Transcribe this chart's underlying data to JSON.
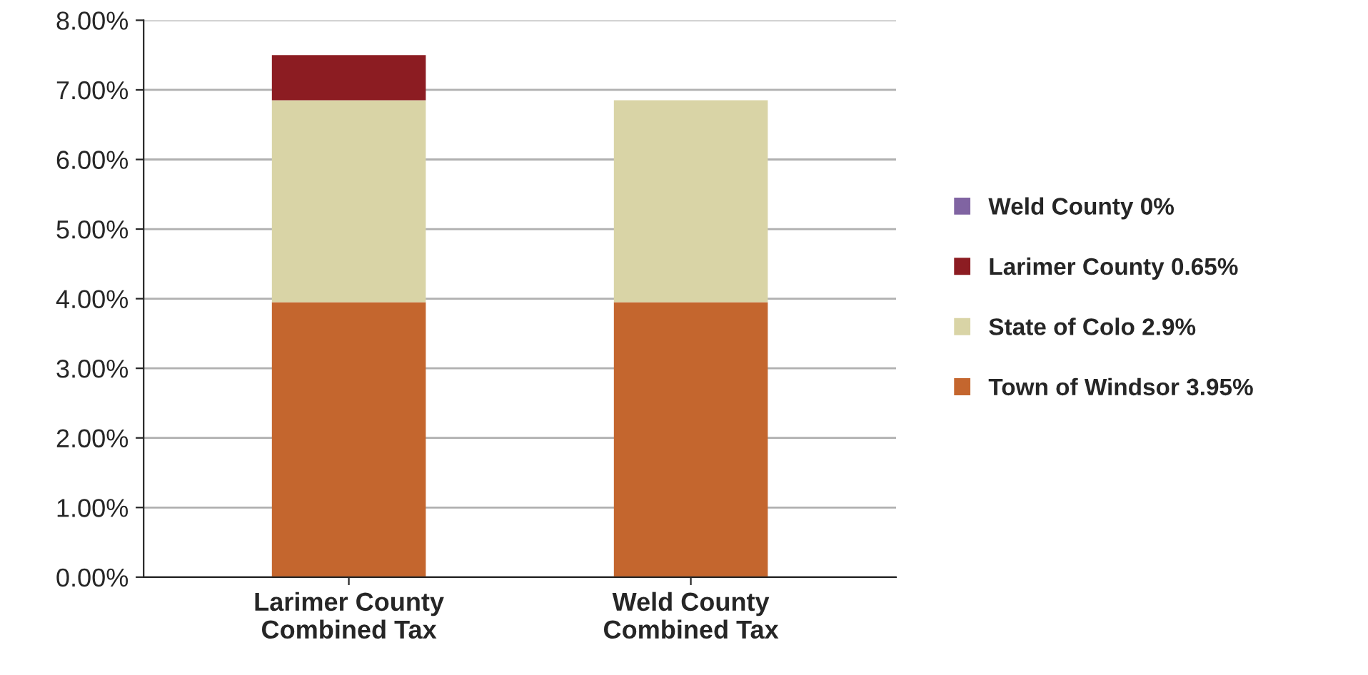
{
  "chart_data": {
    "type": "bar",
    "stacked": true,
    "categories": [
      "Larimer County\nCombined Tax",
      "Weld County\nCombined Tax"
    ],
    "series": [
      {
        "name": "Town of Windsor 3.95%",
        "color": "#c4662e",
        "values": [
          3.95,
          3.95
        ]
      },
      {
        "name": "State of Colo 2.9%",
        "color": "#d9d4a6",
        "values": [
          2.9,
          2.9
        ]
      },
      {
        "name": "Larimer County 0.65%",
        "color": "#8c1c22",
        "values": [
          0.65,
          0
        ]
      },
      {
        "name": "Weld County 0%",
        "color": "#8064a2",
        "values": [
          0,
          0
        ]
      }
    ],
    "ylim": [
      0,
      8
    ],
    "yticks": [
      {
        "value": 0,
        "label": "0.00%"
      },
      {
        "value": 1,
        "label": "1.00%"
      },
      {
        "value": 2,
        "label": "2.00%"
      },
      {
        "value": 3,
        "label": "3.00%"
      },
      {
        "value": 4,
        "label": "4.00%"
      },
      {
        "value": 5,
        "label": "5.00%"
      },
      {
        "value": 6,
        "label": "6.00%"
      },
      {
        "value": 7,
        "label": "7.00%"
      },
      {
        "value": 8,
        "label": "8.00%"
      }
    ],
    "grid": "y",
    "legend": "right"
  }
}
